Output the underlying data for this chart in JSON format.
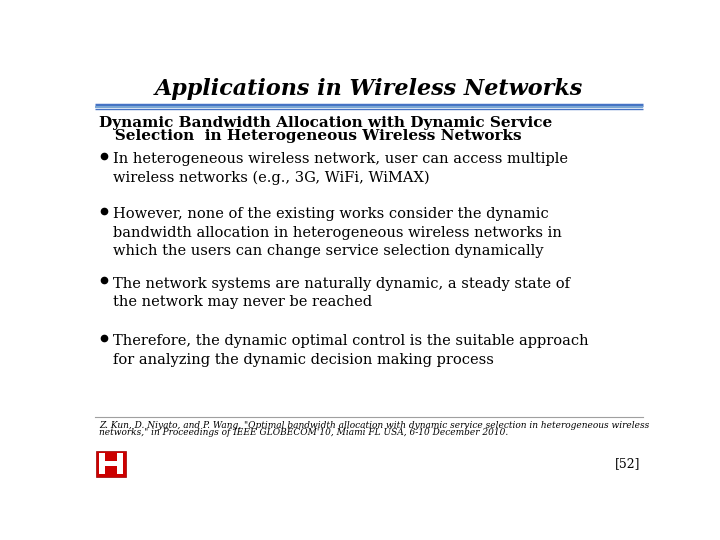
{
  "title": "Applications in Wireless Networks",
  "bg_color": "#FFFFFF",
  "title_color": "#000000",
  "title_fontsize": 16,
  "subtitle_line1": "Dynamic Bandwidth Allocation with Dynamic Service",
  "subtitle_line2": "   Selection  in Heterogeneous Wireless Networks",
  "subtitle_fontsize": 11,
  "bullets": [
    "In heterogeneous wireless network, user can access multiple\nwireless networks (e.g., 3G, WiFi, WiMAX)",
    "However, none of the existing works consider the dynamic\nbandwidth allocation in heterogeneous wireless networks in\nwhich the users can change service selection dynamically",
    "The network systems are naturally dynamic, a steady state of\nthe network may never be reached",
    "Therefore, the dynamic optimal control is the suitable approach\nfor analyzing the dynamic decision making process"
  ],
  "bullet_fontsize": 10.5,
  "footnote_line1": "Z. Kun, D. Niyato, and P. Wang, \"Optimal bandwidth allocation with dynamic service selection in heterogeneous wireless",
  "footnote_line2": "networks,\" in Proceedings of IEEE GLOBECOM'10, Miami FL USA, 6-10 December 2010.",
  "footnote_fontsize": 6.5,
  "page_number": "[52]",
  "page_number_fontsize": 9,
  "sep_color1": "#4472C4",
  "sep_color2": "#7BA7D4",
  "footer_line_color": "#A0A0A0"
}
